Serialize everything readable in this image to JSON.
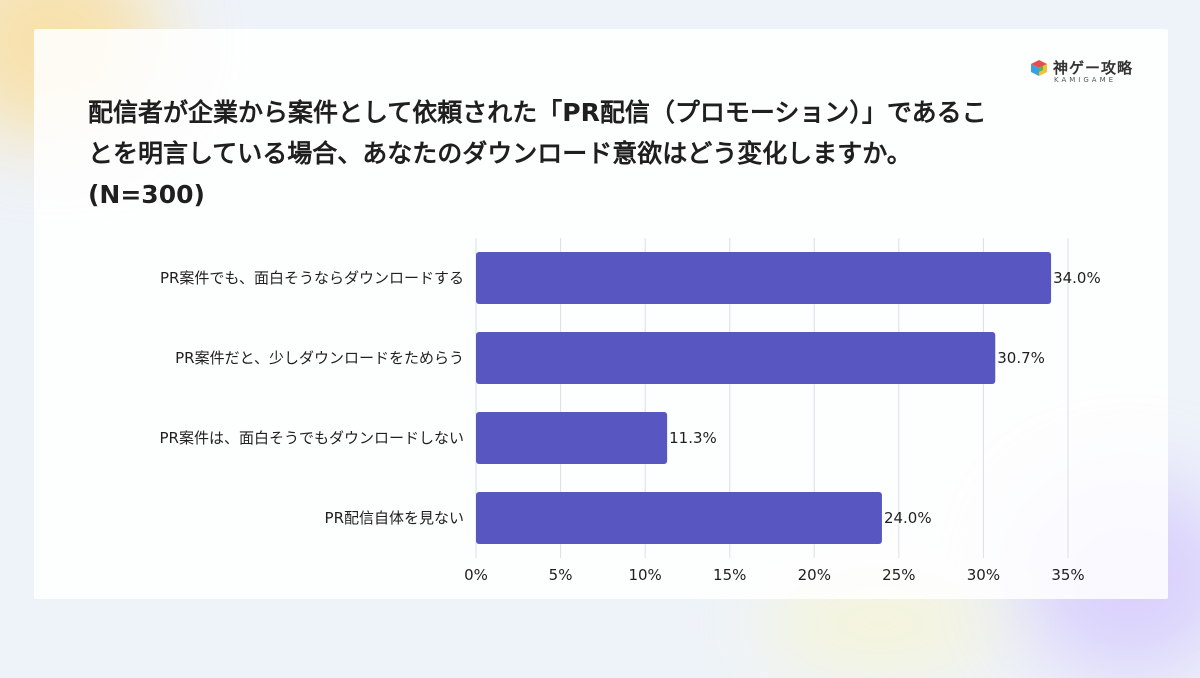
{
  "title_lines": [
    "配信者が企業から案件として依頼された「PR配信（プロモーション）」であるこ",
    "とを明言している場合、あなたのダウンロード意欲はどう変化しますか。",
    "(N=300)"
  ],
  "logo": {
    "text": "神ゲー攻略",
    "sub": "KAMIGAME",
    "icon": "cube-logo-icon"
  },
  "colors": {
    "bar": "#5856c0",
    "grid": "#dcdfe6",
    "text": "#1f1f1f"
  },
  "chart_data": {
    "type": "bar",
    "orientation": "horizontal",
    "title": "配信者が企業から案件として依頼された「PR配信（プロモーション）」であることを明言している場合、あなたのダウンロード意欲はどう変化しますか。(N=300)",
    "categories": [
      "PR案件でも、面白そうならダウンロードする",
      "PR案件だと、少しダウンロードをためらう",
      "PR案件は、面白そうでもダウンロードしない",
      "PR配信自体を見ない"
    ],
    "values": [
      34.0,
      30.7,
      11.3,
      24.0
    ],
    "value_labels": [
      "34.0%",
      "30.7%",
      "11.3%",
      "24.0%"
    ],
    "xlim": [
      0,
      35
    ],
    "xticks": [
      0,
      5,
      10,
      15,
      20,
      25,
      30,
      35
    ],
    "xtick_labels": [
      "0%",
      "5%",
      "10%",
      "15%",
      "20%",
      "25%",
      "30%",
      "35%"
    ],
    "grid": "vertical",
    "legend": "none"
  }
}
